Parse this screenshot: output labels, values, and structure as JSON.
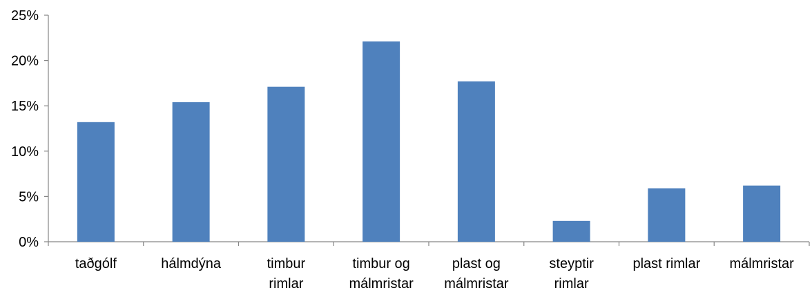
{
  "chart_data": {
    "type": "bar",
    "categories": [
      [
        "taðgólf"
      ],
      [
        "hálmdýna"
      ],
      [
        "timbur",
        "rimlar"
      ],
      [
        "timbur og",
        "málmristar"
      ],
      [
        "plast og",
        "málmristar"
      ],
      [
        "steyptir",
        "rimlar"
      ],
      [
        "plast rimlar"
      ],
      [
        "málmristar"
      ]
    ],
    "values": [
      13.2,
      15.4,
      17.1,
      22.1,
      17.7,
      2.3,
      5.9,
      6.2
    ],
    "ylim": [
      0,
      25
    ],
    "yticks": [
      0,
      5,
      10,
      15,
      20,
      25
    ],
    "ytick_labels": [
      "0%",
      "5%",
      "10%",
      "15%",
      "20%",
      "25%"
    ],
    "title": "",
    "xlabel": "",
    "ylabel": "",
    "bar_color": "#4f81bd",
    "axis_color": "#868686",
    "grid": false,
    "legend": "none"
  }
}
